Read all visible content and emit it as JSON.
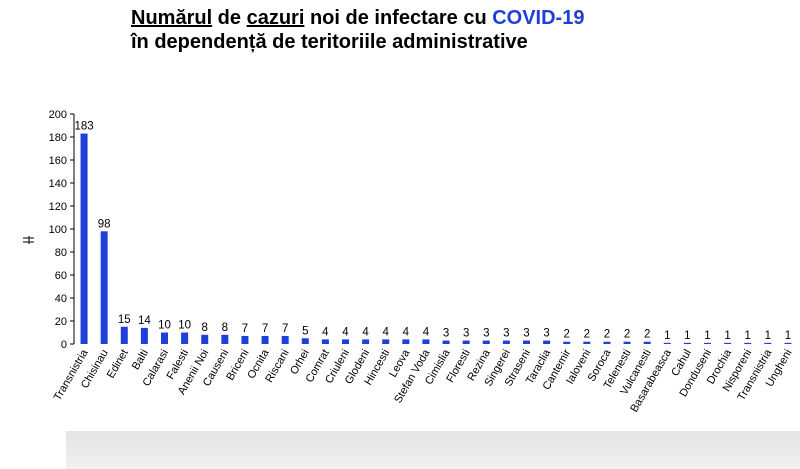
{
  "title": {
    "line1_part1": "Numărul",
    "line1_part2": " de ",
    "line1_part3": "cazuri",
    "line1_part4": " noi de infectare cu ",
    "line1_part5": "COVID-19",
    "line2": "în dependență de teritoriile administrative"
  },
  "colors": {
    "bar": "#1f3fd9",
    "accent": "#1f3fd9"
  },
  "chart_data": {
    "type": "bar",
    "title": "Numărul de cazuri noi de infectare cu COVID-19 în dependență de teritoriile administrative",
    "xlabel": "",
    "ylabel": "",
    "ylim": [
      0,
      200
    ],
    "yticks": [
      0,
      20,
      40,
      60,
      80,
      100,
      120,
      140,
      160,
      180,
      200
    ],
    "grid": false,
    "categories": [
      "Transnistria",
      "Chisinau",
      "Edinet",
      "Balti",
      "Calarasi",
      "Falesti",
      "Anenii Noi",
      "Causeni",
      "Briceni",
      "Ocnita",
      "Riscani",
      "Orhei",
      "Comrat",
      "Criuleni",
      "Glodeni",
      "Hincesti",
      "Leova",
      "Stefan Voda",
      "Cimislia",
      "Floresti",
      "Rezina",
      "Singerei",
      "Straseni",
      "Taraclia",
      "Cantemir",
      "Ialoveni",
      "Soroca",
      "Telenesti",
      "Vulcanesti",
      "Basarabeasca",
      "Cahul",
      "Donduseni",
      "Drochia",
      "Nisporeni",
      "Transnistria",
      "Ungheni"
    ],
    "values": [
      183,
      98,
      15,
      14,
      10,
      10,
      8,
      8,
      7,
      7,
      7,
      5,
      4,
      4,
      4,
      4,
      4,
      4,
      3,
      3,
      3,
      3,
      3,
      3,
      2,
      2,
      2,
      2,
      2,
      1,
      1,
      1,
      1,
      1,
      1,
      1
    ]
  }
}
